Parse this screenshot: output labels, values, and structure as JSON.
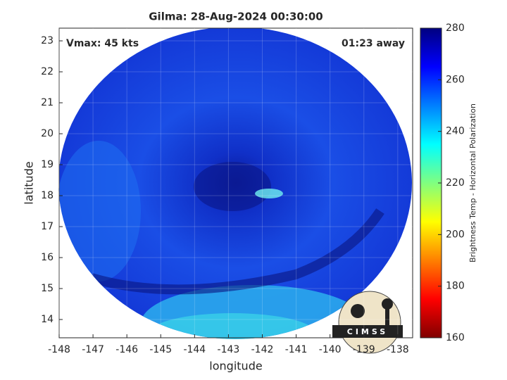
{
  "chart_data": {
    "type": "map",
    "title": "Gilma: 28-Aug-2024 00:30:00",
    "annotations": [
      "Vmax: 45 kts",
      "01:23 away"
    ],
    "x_label": "longitude",
    "y_label": "latitude",
    "xlim": [
      -148,
      -137.56
    ],
    "xticks": [
      -148,
      -147,
      -146,
      -145,
      -144,
      -143,
      -142,
      -141,
      -140,
      -139,
      -138
    ],
    "ylim": [
      13.41,
      23.41
    ],
    "yticks": [
      14,
      15,
      16,
      17,
      18,
      19,
      20,
      21,
      22,
      23
    ],
    "grid": true,
    "colorbar": {
      "label": "Brightness Temp - Horizontal Polarization",
      "lim": [
        160,
        280
      ],
      "ticks": [
        160,
        180,
        200,
        220,
        240,
        260,
        280
      ]
    },
    "logo_text": "CIMSS"
  }
}
